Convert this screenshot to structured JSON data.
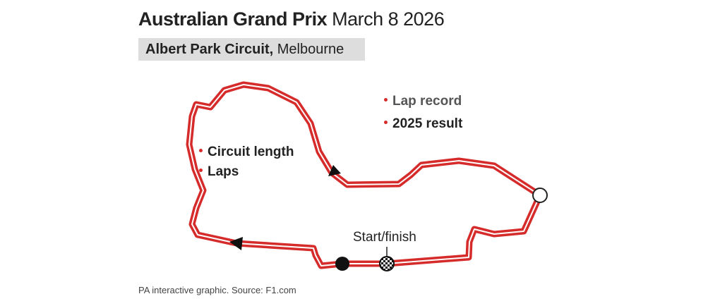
{
  "header": {
    "title": "Australian Grand Prix",
    "date": "March 8 2026",
    "circuit": "Albert Park Circuit,",
    "city": "Melbourne"
  },
  "labels": [
    "Lap record",
    "2025 result",
    "Circuit length",
    "Laps"
  ],
  "start_label": "Start/finish",
  "footer": "PA interactive graphic. Source: F1.com"
}
